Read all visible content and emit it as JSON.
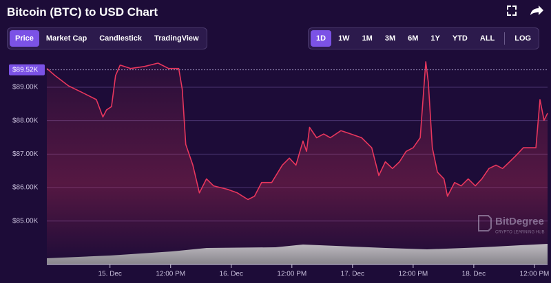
{
  "header": {
    "title": "Bitcoin (BTC) to USD Chart"
  },
  "tabs": [
    "Price",
    "Market Cap",
    "Candlestick",
    "TradingView"
  ],
  "ranges": [
    "1D",
    "1W",
    "1M",
    "3M",
    "6M",
    "1Y",
    "YTD",
    "ALL"
  ],
  "log": "LOG",
  "watermark": {
    "title": "BitDegree",
    "subtitle": "CRYPTO LEARNING HUB"
  },
  "chart_data": {
    "type": "line",
    "color": "#e8365d",
    "x": [
      -12.5,
      -10.9,
      -8.2,
      -5.5,
      -2.7,
      -1.4,
      -0.7,
      0.3,
      1.1,
      2.0,
      4.1,
      6.8,
      9.5,
      11.6,
      13.6,
      14.3,
      15.0,
      16.4,
      17.7,
      19.1,
      20.5,
      23.2,
      25.2,
      27.3,
      28.6,
      30.0,
      32.0,
      34.1,
      35.5,
      36.8,
      38.2,
      38.9,
      39.5,
      40.9,
      42.3,
      43.6,
      45.7,
      47.7,
      49.8,
      51.8,
      53.2,
      54.5,
      55.9,
      57.3,
      58.6,
      60.0,
      61.4,
      62.5,
      63.0,
      63.8,
      64.8,
      66.1,
      66.8,
      68.2,
      69.5,
      70.9,
      72.3,
      73.6,
      75.0,
      76.4,
      77.7,
      79.1,
      80.5,
      81.8,
      83.2,
      84.3,
      85.1,
      85.9,
      86.6
    ],
    "values": [
      89.56,
      89.35,
      89.04,
      88.84,
      88.63,
      88.11,
      88.32,
      88.42,
      89.35,
      89.66,
      89.56,
      89.62,
      89.72,
      89.56,
      89.56,
      88.94,
      87.29,
      86.67,
      85.84,
      86.26,
      86.05,
      85.95,
      85.84,
      85.64,
      85.74,
      86.15,
      86.15,
      86.67,
      86.88,
      86.67,
      87.39,
      87.08,
      87.8,
      87.49,
      87.6,
      87.49,
      87.7,
      87.6,
      87.49,
      87.19,
      86.36,
      86.77,
      86.57,
      86.77,
      87.08,
      87.19,
      87.49,
      89.76,
      89.14,
      87.19,
      86.46,
      86.26,
      85.74,
      86.15,
      86.05,
      86.26,
      86.05,
      86.26,
      86.57,
      86.67,
      86.57,
      86.77,
      86.98,
      87.19,
      87.19,
      87.19,
      88.63,
      88.01,
      88.22
    ],
    "xlim": [
      -12.5,
      86.6
    ],
    "ylim": [
      83.7,
      89.8
    ],
    "yticks": [
      {
        "value": 85,
        "label": "$85.00K"
      },
      {
        "value": 86,
        "label": "$86.00K"
      },
      {
        "value": 87,
        "label": "$87.00K"
      },
      {
        "value": 88,
        "label": "$88.00K"
      },
      {
        "value": 89,
        "label": "$89.00K"
      }
    ],
    "xticks": [
      {
        "value": 0,
        "label": "15. Dec"
      },
      {
        "value": 12,
        "label": "12:00 PM"
      },
      {
        "value": 24,
        "label": "16. Dec"
      },
      {
        "value": 36,
        "label": "12:00 PM"
      },
      {
        "value": 48,
        "label": "17. Dec"
      },
      {
        "value": 60,
        "label": "12:00 PM"
      },
      {
        "value": 72,
        "label": "18. Dec"
      },
      {
        "value": 84,
        "label": "12:00 PM"
      }
    ],
    "grid": true,
    "annotations": [
      {
        "text": "$89.52K",
        "value": 89.52
      }
    ]
  }
}
